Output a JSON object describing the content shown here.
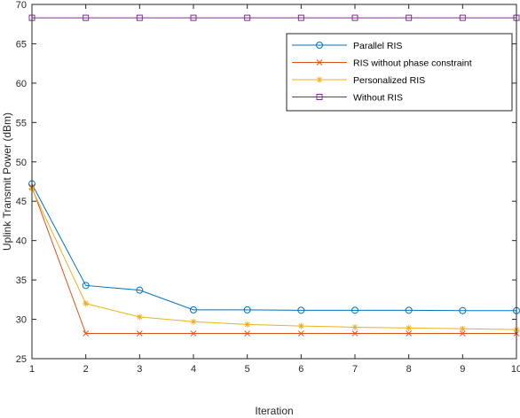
{
  "chart_data": {
    "type": "line",
    "xlabel": "Iteration",
    "ylabel": "Uplink Transmit Power (dBm)",
    "x": [
      1,
      2,
      3,
      4,
      5,
      6,
      7,
      8,
      9,
      10
    ],
    "xlim": [
      1,
      10
    ],
    "ylim": [
      25,
      70
    ],
    "xticks": [
      "1",
      "2",
      "3",
      "4",
      "5",
      "6",
      "7",
      "8",
      "9",
      "10"
    ],
    "yticks": [
      "25",
      "30",
      "35",
      "40",
      "45",
      "50",
      "55",
      "60",
      "65",
      "70"
    ],
    "grid": false,
    "legend_position": "top-right",
    "series": [
      {
        "name": "Parallel RIS",
        "color": "#0072BD",
        "marker": "circle",
        "values": [
          47.2,
          34.3,
          33.7,
          31.2,
          31.2,
          31.15,
          31.15,
          31.15,
          31.1,
          31.1
        ]
      },
      {
        "name": "RIS without phase constraint",
        "color": "#D95319",
        "marker": "x",
        "values": [
          46.8,
          28.2,
          28.2,
          28.2,
          28.2,
          28.2,
          28.2,
          28.2,
          28.2,
          28.2
        ]
      },
      {
        "name": "Personalized RIS",
        "color": "#EDB120",
        "marker": "asterisk",
        "values": [
          46.6,
          32.0,
          30.3,
          29.7,
          29.35,
          29.15,
          29.0,
          28.9,
          28.8,
          28.7
        ]
      },
      {
        "name": "Without RIS",
        "color": "#7E2F8E",
        "marker": "square",
        "values": [
          68.3,
          68.3,
          68.3,
          68.3,
          68.3,
          68.3,
          68.3,
          68.3,
          68.3,
          68.3
        ]
      }
    ]
  }
}
